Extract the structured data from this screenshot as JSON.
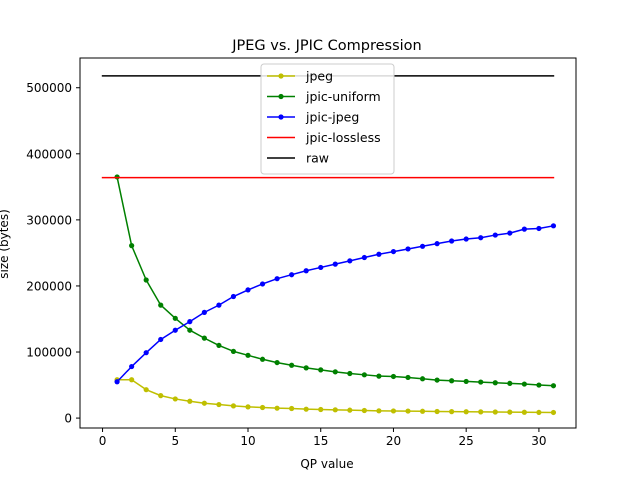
{
  "chart_data": {
    "type": "line",
    "title": "JPEG vs. JPIC Compression",
    "xlabel": "QP value",
    "ylabel": "size (bytes)",
    "xlim": [
      -1.55,
      32.55
    ],
    "ylim": [
      -15000,
      545000
    ],
    "xticks": [
      0,
      5,
      10,
      15,
      20,
      25,
      30
    ],
    "yticks": [
      0,
      100000,
      200000,
      300000,
      400000,
      500000
    ],
    "grid": false,
    "legend_position": "upper center",
    "series": [
      {
        "name": "jpeg",
        "color": "#bfbf00",
        "marker": "dot",
        "x": [
          1,
          2,
          3,
          4,
          5,
          6,
          7,
          8,
          9,
          10,
          11,
          12,
          13,
          14,
          15,
          16,
          17,
          18,
          19,
          20,
          21,
          22,
          23,
          24,
          25,
          26,
          27,
          28,
          29,
          30,
          31
        ],
        "y": [
          58000,
          58000,
          43000,
          34000,
          29000,
          25500,
          22500,
          20500,
          18500,
          17000,
          16000,
          15000,
          14500,
          13500,
          13000,
          12500,
          12000,
          11500,
          11000,
          10800,
          10600,
          10300,
          10000,
          9800,
          9600,
          9400,
          9200,
          9000,
          8800,
          8600,
          8500
        ]
      },
      {
        "name": "jpic-uniform",
        "color": "#008000",
        "marker": "dot",
        "x": [
          1,
          2,
          3,
          4,
          5,
          6,
          7,
          8,
          9,
          10,
          11,
          12,
          13,
          14,
          15,
          16,
          17,
          18,
          19,
          20,
          21,
          22,
          23,
          24,
          25,
          26,
          27,
          28,
          29,
          30,
          31
        ],
        "y": [
          365000,
          261000,
          209000,
          171000,
          151000,
          133000,
          121000,
          110000,
          101000,
          95000,
          89000,
          84000,
          80000,
          76000,
          73000,
          70000,
          67500,
          65500,
          63500,
          63000,
          61500,
          59500,
          57500,
          56500,
          55500,
          54500,
          53500,
          52500,
          51500,
          50000,
          49000
        ]
      },
      {
        "name": "jpic-jpeg",
        "color": "#0000ff",
        "marker": "dot",
        "x": [
          1,
          2,
          3,
          4,
          5,
          6,
          7,
          8,
          9,
          10,
          11,
          12,
          13,
          14,
          15,
          16,
          17,
          18,
          19,
          20,
          21,
          22,
          23,
          24,
          25,
          26,
          27,
          28,
          29,
          30,
          31
        ],
        "y": [
          55000,
          78000,
          99000,
          119000,
          133000,
          146000,
          160000,
          171000,
          184000,
          194000,
          203000,
          211000,
          217000,
          223000,
          228000,
          233000,
          238000,
          243000,
          248000,
          252000,
          256000,
          260000,
          264000,
          268000,
          271000,
          273000,
          277000,
          280000,
          286000,
          287000,
          291000
        ]
      },
      {
        "name": "jpic-lossless",
        "color": "#ff0000",
        "marker": "none",
        "x": [
          0,
          31
        ],
        "y": [
          364000,
          364000
        ]
      },
      {
        "name": "raw",
        "color": "#000000",
        "marker": "none",
        "x": [
          0,
          31
        ],
        "y": [
          518000,
          518000
        ]
      }
    ]
  }
}
